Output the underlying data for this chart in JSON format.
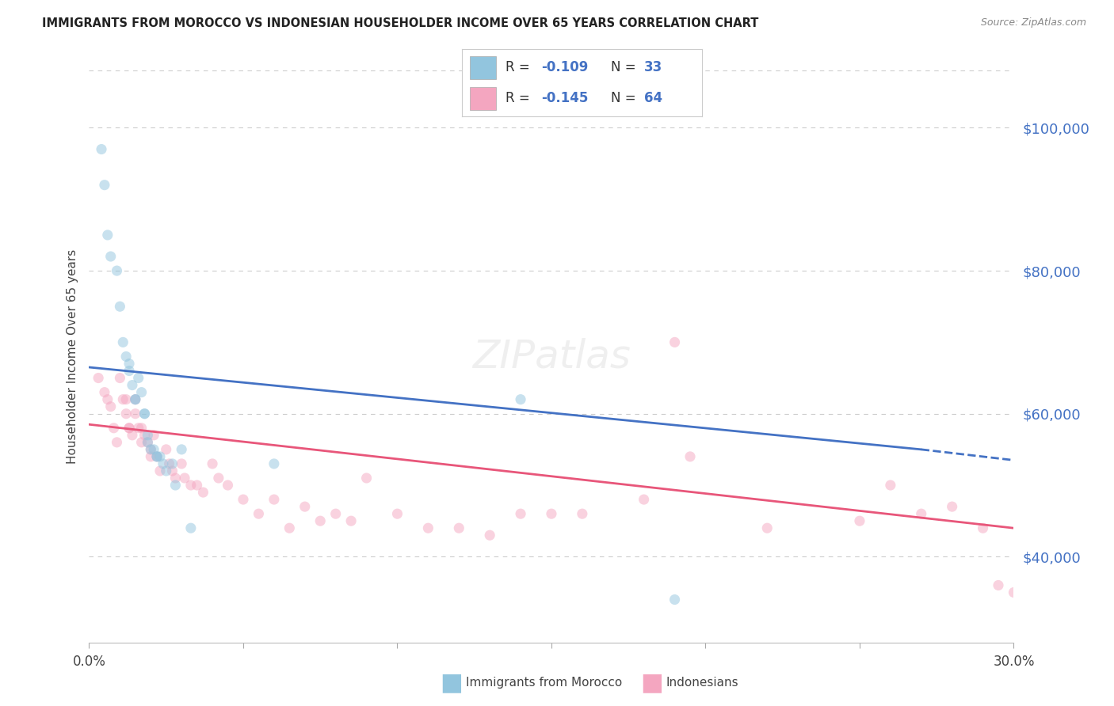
{
  "title": "IMMIGRANTS FROM MOROCCO VS INDONESIAN HOUSEHOLDER INCOME OVER 65 YEARS CORRELATION CHART",
  "source": "Source: ZipAtlas.com",
  "ylabel": "Householder Income Over 65 years",
  "yaxis_labels": [
    "$40,000",
    "$60,000",
    "$80,000",
    "$100,000"
  ],
  "yaxis_values": [
    40000,
    60000,
    80000,
    100000
  ],
  "legend_label1": "Immigrants from Morocco",
  "legend_label2": "Indonesians",
  "legend_R1": "-0.109",
  "legend_N1": "33",
  "legend_R2": "-0.145",
  "legend_N2": "64",
  "color_blue": "#92c5de",
  "color_pink": "#f4a6c0",
  "color_blue_line": "#4472c4",
  "color_pink_line": "#e8567a",
  "color_title": "#222222",
  "color_source": "#888888",
  "color_axis_numbers": "#4472c4",
  "background_color": "#ffffff",
  "grid_color": "#cccccc",
  "morocco_x": [
    0.004,
    0.005,
    0.006,
    0.007,
    0.009,
    0.01,
    0.011,
    0.012,
    0.013,
    0.013,
    0.014,
    0.015,
    0.015,
    0.016,
    0.017,
    0.018,
    0.018,
    0.019,
    0.019,
    0.02,
    0.021,
    0.022,
    0.022,
    0.023,
    0.024,
    0.025,
    0.027,
    0.028,
    0.03,
    0.033,
    0.06,
    0.14,
    0.19
  ],
  "morocco_y": [
    97000,
    92000,
    85000,
    82000,
    80000,
    75000,
    70000,
    68000,
    67000,
    66000,
    64000,
    62000,
    62000,
    65000,
    63000,
    60000,
    60000,
    57000,
    56000,
    55000,
    55000,
    54000,
    54000,
    54000,
    53000,
    52000,
    53000,
    50000,
    55000,
    44000,
    53000,
    62000,
    34000
  ],
  "indonesian_x": [
    0.003,
    0.005,
    0.006,
    0.007,
    0.008,
    0.009,
    0.01,
    0.011,
    0.012,
    0.012,
    0.013,
    0.013,
    0.014,
    0.015,
    0.015,
    0.016,
    0.017,
    0.017,
    0.018,
    0.019,
    0.02,
    0.02,
    0.021,
    0.022,
    0.023,
    0.025,
    0.026,
    0.027,
    0.028,
    0.03,
    0.031,
    0.033,
    0.035,
    0.037,
    0.04,
    0.042,
    0.045,
    0.05,
    0.055,
    0.06,
    0.065,
    0.07,
    0.075,
    0.08,
    0.085,
    0.09,
    0.1,
    0.11,
    0.12,
    0.13,
    0.14,
    0.15,
    0.16,
    0.18,
    0.19,
    0.195,
    0.22,
    0.25,
    0.26,
    0.27,
    0.28,
    0.29,
    0.295,
    0.3
  ],
  "indonesian_y": [
    65000,
    63000,
    62000,
    61000,
    58000,
    56000,
    65000,
    62000,
    60000,
    62000,
    58000,
    58000,
    57000,
    62000,
    60000,
    58000,
    58000,
    56000,
    57000,
    56000,
    54000,
    55000,
    57000,
    54000,
    52000,
    55000,
    53000,
    52000,
    51000,
    53000,
    51000,
    50000,
    50000,
    49000,
    53000,
    51000,
    50000,
    48000,
    46000,
    48000,
    44000,
    47000,
    45000,
    46000,
    45000,
    51000,
    46000,
    44000,
    44000,
    43000,
    46000,
    46000,
    46000,
    48000,
    70000,
    54000,
    44000,
    45000,
    50000,
    46000,
    47000,
    44000,
    36000,
    35000
  ],
  "blue_line_x0": 0.0,
  "blue_line_y0": 66500,
  "blue_line_x1": 0.27,
  "blue_line_y1": 55000,
  "blue_line_dash_x1": 0.3,
  "blue_line_dash_y1": 53500,
  "pink_line_x0": 0.0,
  "pink_line_y0": 58500,
  "pink_line_x1": 0.3,
  "pink_line_y1": 44000,
  "xlim": [
    0.0,
    0.3
  ],
  "ylim": [
    28000,
    108000
  ],
  "marker_size": 90,
  "marker_alpha": 0.5
}
